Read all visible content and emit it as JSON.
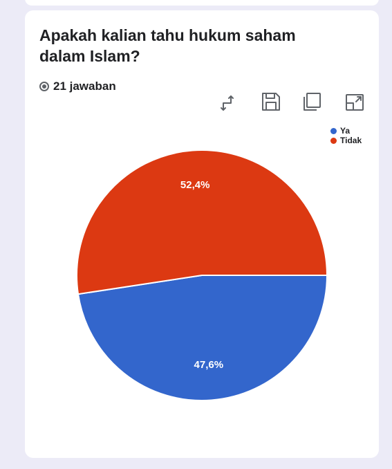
{
  "question": {
    "title": "Apakah kalian tahu hukum saham dalam Islam?",
    "responses_label": "21 jawaban"
  },
  "toolbar": {
    "icons": [
      "swap-axes-icon",
      "save-icon",
      "copy-icon",
      "open-in-new-icon"
    ]
  },
  "chart_data": {
    "type": "pie",
    "categories": [
      "Ya",
      "Tidak"
    ],
    "values": [
      47.6,
      52.4
    ],
    "labels": [
      "47,6%",
      "52,4%"
    ],
    "colors": [
      "#3366cc",
      "#dc3912"
    ],
    "legend_position": "top-right"
  }
}
